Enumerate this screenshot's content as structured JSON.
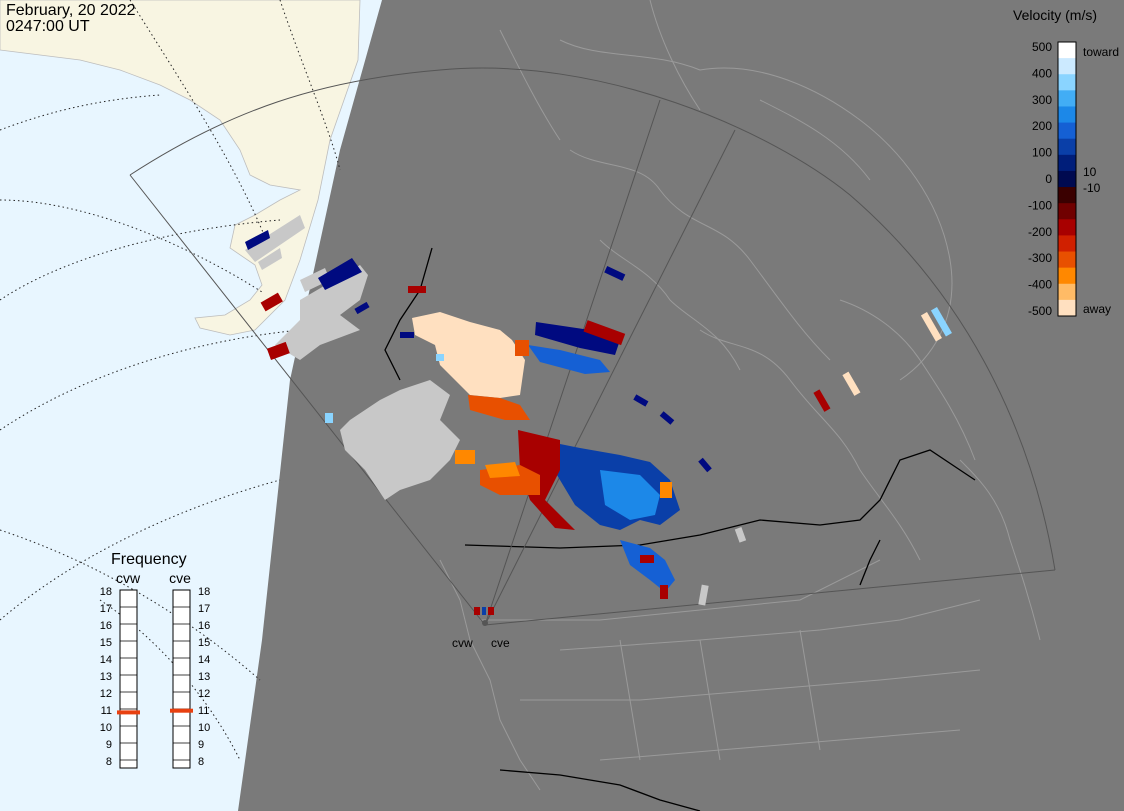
{
  "header": {
    "date": "February, 20 2022",
    "time": "0247:00 UT"
  },
  "velocity_legend": {
    "title": "Velocity (m/s)",
    "ticks": [
      "500",
      "400",
      "300",
      "200",
      "100",
      "0",
      "-100",
      "-200",
      "-300",
      "-400",
      "-500"
    ],
    "toward_label": "toward",
    "away_label": "away",
    "plus10_label": "10",
    "minus10_label": "-10",
    "colors": [
      "#ffffff",
      "#cceaff",
      "#8ad4ff",
      "#42adf5",
      "#1c88e8",
      "#1560d4",
      "#0a3fa8",
      "#001e7a",
      "#000a50",
      "#3a0000",
      "#700000",
      "#a80000",
      "#d02000",
      "#e85000",
      "#ff8800",
      "#ffbb66",
      "#ffe0c0"
    ]
  },
  "frequency_panel": {
    "title": "Frequency",
    "radars": [
      {
        "name": "cvw",
        "frequency": 10.8
      },
      {
        "name": "cve",
        "frequency": 10.9
      }
    ],
    "ticks": [
      "18",
      "17",
      "16",
      "15",
      "14",
      "13",
      "12",
      "11",
      "10",
      "9",
      "8"
    ],
    "marker_color": "#e84010"
  },
  "radar_site_labels": [
    "cvw",
    "cve"
  ],
  "colors": {
    "ocean": "#e8f6ff",
    "land_day": "#f8f5e2",
    "night": "#7a7a7a",
    "ground_scatter": "#c8c8c8"
  }
}
